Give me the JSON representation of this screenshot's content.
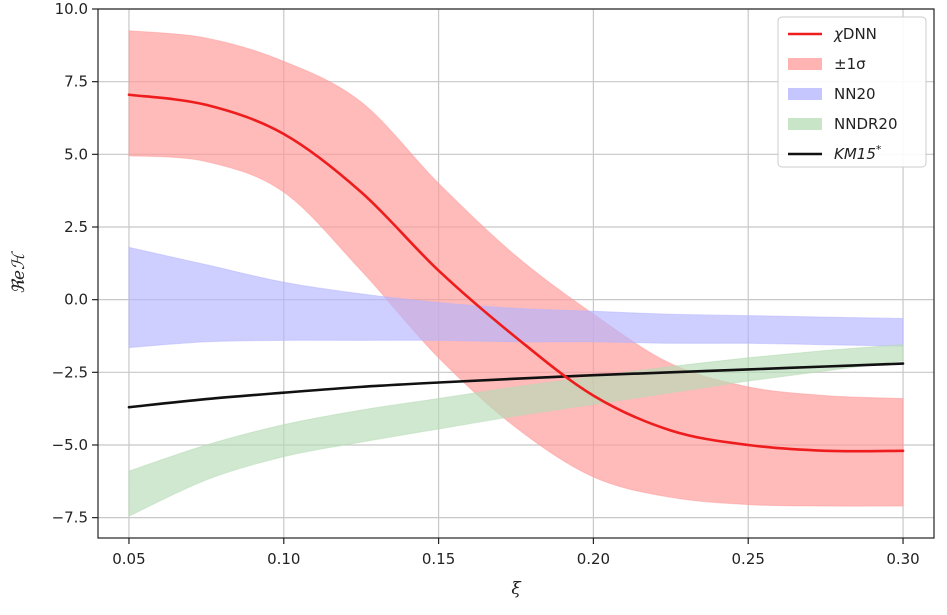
{
  "chart_data": {
    "type": "line",
    "xlabel": "ξ",
    "ylabel": "ℜeℋ",
    "xlim": [
      0.04,
      0.31
    ],
    "ylim": [
      -8.2,
      10.0
    ],
    "grid": true,
    "legend_position": "top-right",
    "x_ticks": [
      0.05,
      0.1,
      0.15,
      0.2,
      0.25,
      0.3
    ],
    "x_tick_labels": [
      "0.05",
      "0.10",
      "0.15",
      "0.20",
      "0.25",
      "0.30"
    ],
    "y_ticks": [
      -7.5,
      -5.0,
      -2.5,
      0.0,
      2.5,
      5.0,
      7.5,
      10.0
    ],
    "y_tick_labels": [
      "−7.5",
      "−5.0",
      "−2.5",
      "0.0",
      "2.5",
      "5.0",
      "7.5",
      "10.0"
    ],
    "x": [
      0.05,
      0.075,
      0.1,
      0.125,
      0.15,
      0.175,
      0.2,
      0.225,
      0.25,
      0.275,
      0.3
    ],
    "series": [
      {
        "name": "χDNN",
        "kind": "line",
        "color": "#ee1c1c",
        "values": [
          7.05,
          6.7,
          5.7,
          3.7,
          1.0,
          -1.3,
          -3.3,
          -4.5,
          -5.0,
          -5.2,
          -5.2
        ]
      },
      {
        "name": "±1σ",
        "kind": "band",
        "color": "#ff9a9a",
        "lower": [
          4.95,
          4.75,
          3.7,
          1.0,
          -2.0,
          -4.4,
          -6.1,
          -6.8,
          -7.05,
          -7.1,
          -7.1
        ],
        "upper": [
          9.25,
          9.0,
          8.2,
          6.8,
          4.0,
          1.5,
          -0.5,
          -2.2,
          -3.0,
          -3.3,
          -3.4
        ]
      },
      {
        "name": "NN20",
        "kind": "band",
        "color": "#b3b3ff",
        "lower": [
          -1.65,
          -1.45,
          -1.4,
          -1.4,
          -1.4,
          -1.45,
          -1.45,
          -1.5,
          -1.5,
          -1.55,
          -1.6
        ],
        "upper": [
          1.8,
          1.2,
          0.6,
          0.2,
          -0.1,
          -0.3,
          -0.4,
          -0.5,
          -0.55,
          -0.6,
          -0.65
        ]
      },
      {
        "name": "NNDR20",
        "kind": "band",
        "color": "#b5dcb5",
        "lower": [
          -7.45,
          -6.2,
          -5.4,
          -4.9,
          -4.45,
          -4.0,
          -3.6,
          -3.2,
          -2.8,
          -2.45,
          -2.1
        ],
        "upper": [
          -5.9,
          -5.0,
          -4.3,
          -3.8,
          -3.4,
          -3.0,
          -2.65,
          -2.3,
          -2.0,
          -1.75,
          -1.55
        ]
      },
      {
        "name": "KM15*",
        "kind": "line",
        "color": "#111111",
        "values": [
          -3.7,
          -3.42,
          -3.2,
          -3.0,
          -2.85,
          -2.72,
          -2.6,
          -2.5,
          -2.4,
          -2.3,
          -2.2
        ]
      }
    ]
  }
}
